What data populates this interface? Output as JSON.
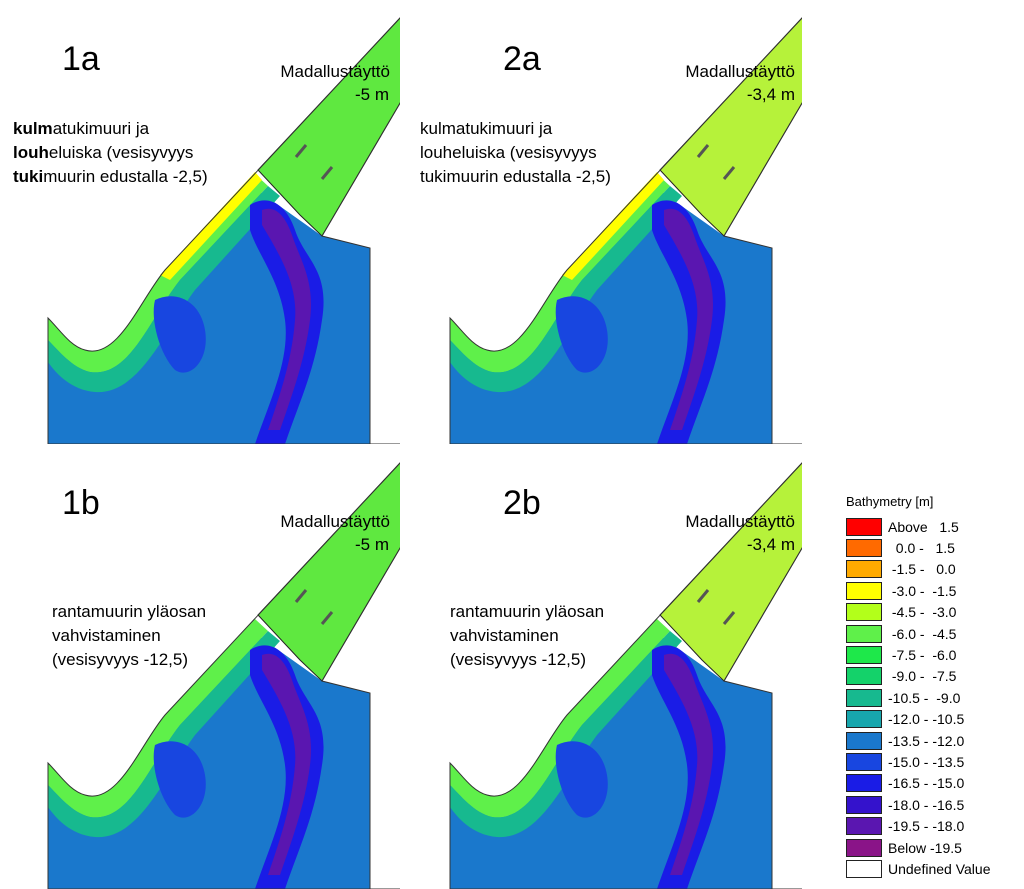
{
  "panels": [
    {
      "id": "1a",
      "label": "1a",
      "fill_name": "Madallustäyttö",
      "fill_depth": "-5 m",
      "note": [
        [
          {
            "t": "kulm",
            "b": true
          },
          {
            "t": "atukimuuri ja",
            "b": false
          }
        ],
        [
          {
            "t": "louh",
            "b": true
          },
          {
            "t": "eluiska (vesisyvyys",
            "b": false
          }
        ],
        [
          {
            "t": "tuki",
            "b": true
          },
          {
            "t": "muurin edustalla -2,5)",
            "b": false
          }
        ]
      ]
    },
    {
      "id": "2a",
      "label": "2a",
      "fill_name": "Madallustäyttö",
      "fill_depth": "-3,4 m",
      "note": [
        [
          {
            "t": "kulmatukimuuri ja",
            "b": false
          }
        ],
        [
          {
            "t": "louheluiska (vesisyvyys",
            "b": false
          }
        ],
        [
          {
            "t": "tukimuurin edustalla -2,5)",
            "b": false
          }
        ]
      ]
    },
    {
      "id": "1b",
      "label": "1b",
      "fill_name": "Madallustäyttö",
      "fill_depth": "-5 m",
      "note": [
        [
          {
            "t": "rantamuurin yläosan",
            "b": false
          }
        ],
        [
          {
            "t": "vahvistaminen",
            "b": false
          }
        ],
        [
          {
            "t": "(vesisyvyys -12,5)",
            "b": false
          }
        ]
      ]
    },
    {
      "id": "2b",
      "label": "2b",
      "fill_name": "Madallustäyttö",
      "fill_depth": "-3,4 m",
      "note": [
        [
          {
            "t": "rantamuurin yläosan",
            "b": false
          }
        ],
        [
          {
            "t": "vahvistaminen",
            "b": false
          }
        ],
        [
          {
            "t": "(vesisyvyys -12,5)",
            "b": false
          }
        ]
      ]
    }
  ],
  "legend": {
    "title": "Bathymetry [m]",
    "entries": [
      {
        "label": "Above   1.5",
        "color": "#ff0000"
      },
      {
        "label": "  0.0 -   1.5",
        "color": "#ff6a00"
      },
      {
        "label": " -1.5 -   0.0",
        "color": "#ffaa00"
      },
      {
        "label": " -3.0 -  -1.5",
        "color": "#ffff00"
      },
      {
        "label": " -4.5 -  -3.0",
        "color": "#b3ff1a"
      },
      {
        "label": " -6.0 -  -4.5",
        "color": "#5ff04a"
      },
      {
        "label": " -7.5 -  -6.0",
        "color": "#1ee84a"
      },
      {
        "label": " -9.0 -  -7.5",
        "color": "#14d26a"
      },
      {
        "label": "-10.5 -  -9.0",
        "color": "#17b98f"
      },
      {
        "label": "-12.0 - -10.5",
        "color": "#17a6ad"
      },
      {
        "label": "-13.5 - -12.0",
        "color": "#1a78cc"
      },
      {
        "label": "-15.0 - -13.5",
        "color": "#1846e0"
      },
      {
        "label": "-16.5 - -15.0",
        "color": "#1a1ce6"
      },
      {
        "label": "-18.0 - -16.5",
        "color": "#3412cc"
      },
      {
        "label": "-19.5 - -18.0",
        "color": "#5a16b0"
      },
      {
        "label": "Below -19.5",
        "color": "#8a1488"
      },
      {
        "label": "Undefined Value",
        "color": "#ffffff"
      }
    ]
  }
}
